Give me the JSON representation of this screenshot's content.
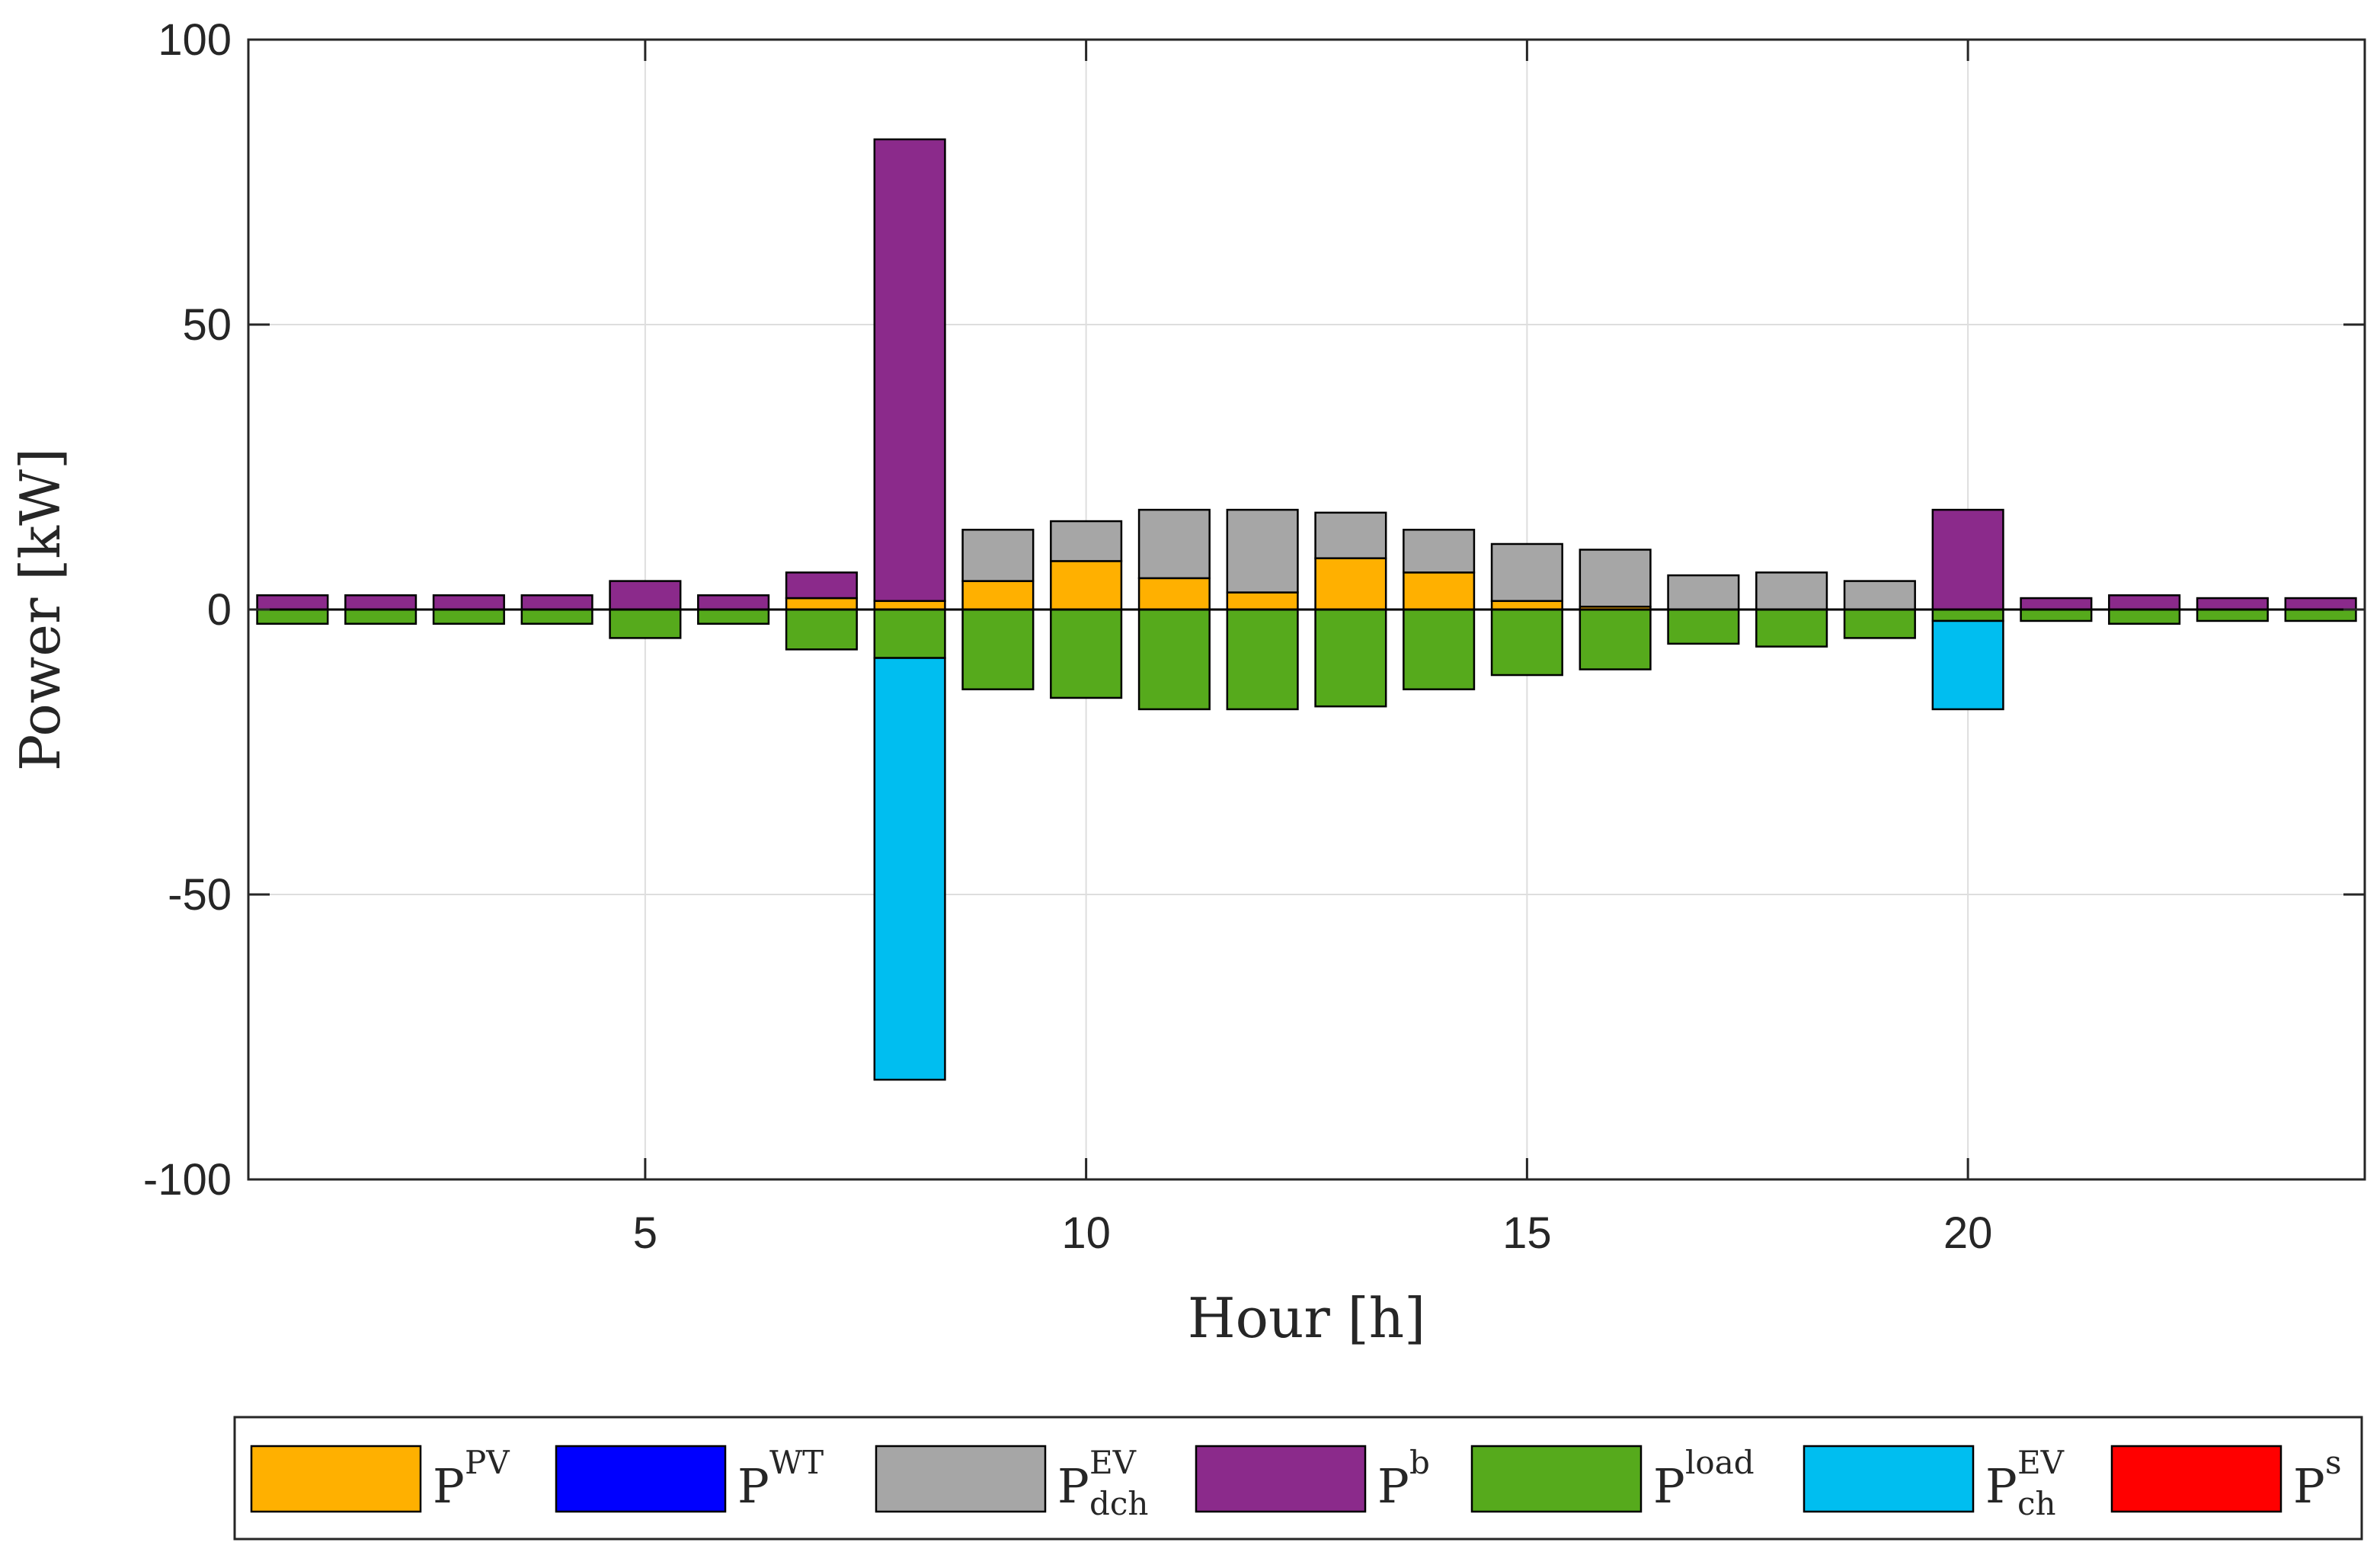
{
  "chart_data": {
    "type": "bar",
    "stacked": true,
    "title": "",
    "xlabel": "Hour [h]",
    "ylabel": "Power [kW]",
    "xlim": [
      0.5,
      24.5
    ],
    "ylim": [
      -100,
      100
    ],
    "xticks": [
      5,
      10,
      15,
      20
    ],
    "yticks": [
      100,
      50,
      0,
      -50,
      -100
    ],
    "xtick_labels": [
      "5",
      "10",
      "15",
      "20"
    ],
    "ytick_labels": [
      "100",
      "50",
      "0",
      "-50",
      "-100"
    ],
    "grid": true,
    "legend_position": "bottom",
    "categories": [
      1,
      2,
      3,
      4,
      5,
      6,
      7,
      8,
      9,
      10,
      11,
      12,
      13,
      14,
      15,
      16,
      17,
      18,
      19,
      20,
      21,
      22,
      23,
      24
    ],
    "series": [
      {
        "name": "P^PV",
        "base": "P",
        "sup": "PV",
        "sub": "",
        "color": "#FFB000",
        "values": [
          0,
          0,
          0,
          0,
          0,
          0,
          2,
          1.5,
          5,
          8.5,
          5.5,
          3,
          9,
          6.5,
          1.5,
          0.5,
          0,
          0,
          0,
          0,
          0,
          0,
          0,
          0
        ]
      },
      {
        "name": "P^WT",
        "base": "P",
        "sup": "WT",
        "sub": "",
        "color": "#0000FF",
        "values": [
          0,
          0,
          0,
          0,
          0,
          0,
          0,
          0,
          0,
          0,
          0,
          0,
          0,
          0,
          0,
          0,
          0,
          0,
          0,
          0,
          0,
          0,
          0,
          0
        ]
      },
      {
        "name": "P^EV_dch",
        "base": "P",
        "sup": "EV",
        "sub": "dch",
        "color": "#A6A6A6",
        "values": [
          0,
          0,
          0,
          0,
          0,
          0,
          0,
          0,
          9,
          7,
          12,
          14.5,
          8,
          7.5,
          10,
          10,
          6,
          6.5,
          5,
          0,
          0,
          0,
          0,
          0
        ]
      },
      {
        "name": "P^b",
        "base": "P",
        "sup": "b",
        "sub": "",
        "color": "#8B2A8B",
        "values": [
          2.5,
          2.5,
          2.5,
          2.5,
          5,
          2.5,
          4.5,
          81,
          0,
          0,
          0,
          0,
          0,
          0,
          0,
          0,
          0,
          0,
          0,
          17.5,
          2,
          2.5,
          2,
          2
        ]
      },
      {
        "name": "P^load",
        "base": "P",
        "sup": "load",
        "sub": "",
        "color": "#56AA1C",
        "values": [
          -2.5,
          -2.5,
          -2.5,
          -2.5,
          -5,
          -2.5,
          -7,
          -8.5,
          -14,
          -15.5,
          -17.5,
          -17.5,
          -17,
          -14,
          -11.5,
          -10.5,
          -6,
          -6.5,
          -5,
          -2,
          -2,
          -2.5,
          -2,
          -2
        ]
      },
      {
        "name": "P^EV_ch",
        "base": "P",
        "sup": "EV",
        "sub": "ch",
        "color": "#00BEF0",
        "values": [
          0,
          0,
          0,
          0,
          0,
          0,
          0,
          -74,
          0,
          0,
          0,
          0,
          0,
          0,
          0,
          0,
          0,
          0,
          0,
          -15.5,
          0,
          0,
          0,
          0
        ]
      },
      {
        "name": "P^s",
        "base": "P",
        "sup": "s",
        "sub": "",
        "color": "#FF0000",
        "values": [
          0,
          0,
          0,
          0,
          0,
          0,
          0,
          0,
          0,
          0,
          0,
          0,
          0,
          0,
          0,
          0,
          0,
          0,
          0,
          0,
          0,
          0,
          0,
          0
        ]
      }
    ]
  }
}
